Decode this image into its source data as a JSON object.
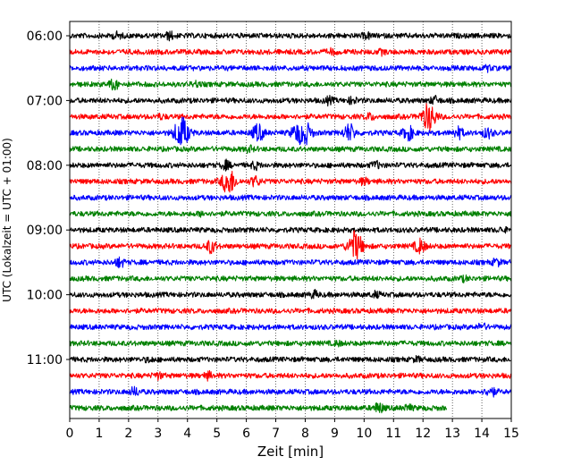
{
  "chart_data": {
    "type": "line",
    "title": "",
    "xlabel": "Zeit  [min]",
    "ylabel": "UTC (Lokalzeit = UTC + 01:00)",
    "xlim": [
      0,
      15
    ],
    "x_ticks": [
      0,
      1,
      2,
      3,
      4,
      5,
      6,
      7,
      8,
      9,
      10,
      11,
      12,
      13,
      14,
      15
    ],
    "x_tick_labels": [
      "0",
      "1",
      "2",
      "3",
      "4",
      "5",
      "6",
      "7",
      "8",
      "9",
      "10",
      "11",
      "12",
      "13",
      "14",
      "15"
    ],
    "y_tick_labels": [
      "06:00",
      "07:00",
      "08:00",
      "09:00",
      "10:00",
      "11:00"
    ],
    "vertical_grid": true,
    "grid_style": "dotted",
    "legend": "none",
    "traces_per_hour": 4,
    "minutes_per_trace": 15,
    "trace_colors": [
      "#000000",
      "#ff0000",
      "#0000ff",
      "#008000"
    ],
    "traces": [
      {
        "start": "06:00",
        "color": "#000000",
        "end_min": 15,
        "events": [
          {
            "t": 1.6,
            "amp": 0.18
          },
          {
            "t": 3.4,
            "amp": 0.22
          },
          {
            "t": 10.1,
            "amp": 0.15
          }
        ]
      },
      {
        "start": "06:15",
        "color": "#ff0000",
        "end_min": 15,
        "events": [
          {
            "t": 8.9,
            "amp": 0.14
          },
          {
            "t": 10.6,
            "amp": 0.12
          }
        ]
      },
      {
        "start": "06:30",
        "color": "#0000ff",
        "end_min": 15,
        "events": [
          {
            "t": 14.2,
            "amp": 0.14
          }
        ]
      },
      {
        "start": "06:45",
        "color": "#008000",
        "end_min": 15,
        "events": [
          {
            "t": 1.5,
            "amp": 0.3
          },
          {
            "t": 4.3,
            "amp": 0.14
          }
        ]
      },
      {
        "start": "07:00",
        "color": "#000000",
        "end_min": 15,
        "events": [
          {
            "t": 8.8,
            "amp": 0.2
          },
          {
            "t": 9.6,
            "amp": 0.18
          },
          {
            "t": 12.4,
            "amp": 0.22
          }
        ]
      },
      {
        "start": "07:15",
        "color": "#ff0000",
        "end_min": 15,
        "events": [
          {
            "t": 3.1,
            "amp": 0.12
          },
          {
            "t": 10.2,
            "amp": 0.18
          },
          {
            "t": 12.2,
            "amp": 0.9
          }
        ]
      },
      {
        "start": "07:30",
        "color": "#0000ff",
        "end_min": 15,
        "events": [
          {
            "t": 3.8,
            "amp": 1.0
          },
          {
            "t": 6.4,
            "amp": 0.55
          },
          {
            "t": 7.7,
            "amp": 0.5
          },
          {
            "t": 8.0,
            "amp": 0.7
          },
          {
            "t": 9.5,
            "amp": 0.55
          },
          {
            "t": 11.5,
            "amp": 0.45
          },
          {
            "t": 13.2,
            "amp": 0.35
          },
          {
            "t": 14.2,
            "amp": 0.3
          }
        ]
      },
      {
        "start": "07:45",
        "color": "#008000",
        "end_min": 15,
        "events": [
          {
            "t": 6.1,
            "amp": 0.15
          }
        ]
      },
      {
        "start": "08:00",
        "color": "#000000",
        "end_min": 15,
        "events": [
          {
            "t": 5.3,
            "amp": 0.25
          },
          {
            "t": 6.3,
            "amp": 0.2
          },
          {
            "t": 10.4,
            "amp": 0.2
          }
        ]
      },
      {
        "start": "08:15",
        "color": "#ff0000",
        "end_min": 15,
        "events": [
          {
            "t": 5.4,
            "amp": 0.85
          },
          {
            "t": 6.3,
            "amp": 0.3
          },
          {
            "t": 10.0,
            "amp": 0.18
          }
        ]
      },
      {
        "start": "08:30",
        "color": "#0000ff",
        "end_min": 15,
        "events": []
      },
      {
        "start": "08:45",
        "color": "#008000",
        "end_min": 15,
        "events": [
          {
            "t": 4.5,
            "amp": 0.12
          }
        ]
      },
      {
        "start": "09:00",
        "color": "#000000",
        "end_min": 15,
        "events": [
          {
            "t": 14.7,
            "amp": 0.12
          }
        ]
      },
      {
        "start": "09:15",
        "color": "#ff0000",
        "end_min": 15,
        "events": [
          {
            "t": 4.8,
            "amp": 0.4
          },
          {
            "t": 9.7,
            "amp": 0.95
          },
          {
            "t": 11.9,
            "amp": 0.45
          }
        ]
      },
      {
        "start": "09:30",
        "color": "#0000ff",
        "end_min": 15,
        "events": [
          {
            "t": 1.7,
            "amp": 0.28
          },
          {
            "t": 14.5,
            "amp": 0.2
          }
        ]
      },
      {
        "start": "09:45",
        "color": "#008000",
        "end_min": 15,
        "events": [
          {
            "t": 13.4,
            "amp": 0.12
          }
        ]
      },
      {
        "start": "10:00",
        "color": "#000000",
        "end_min": 15,
        "events": [
          {
            "t": 8.3,
            "amp": 0.2
          },
          {
            "t": 10.4,
            "amp": 0.15
          }
        ]
      },
      {
        "start": "10:15",
        "color": "#ff0000",
        "end_min": 15,
        "events": []
      },
      {
        "start": "10:30",
        "color": "#0000ff",
        "end_min": 15,
        "events": [
          {
            "t": 14.0,
            "amp": 0.18
          }
        ]
      },
      {
        "start": "10:45",
        "color": "#008000",
        "end_min": 15,
        "events": [
          {
            "t": 9.1,
            "amp": 0.12
          }
        ]
      },
      {
        "start": "11:00",
        "color": "#000000",
        "end_min": 15,
        "events": [
          {
            "t": 2.7,
            "amp": 0.12
          },
          {
            "t": 11.8,
            "amp": 0.12
          }
        ]
      },
      {
        "start": "11:15",
        "color": "#ff0000",
        "end_min": 15,
        "events": [
          {
            "t": 3.0,
            "amp": 0.18
          },
          {
            "t": 4.7,
            "amp": 0.2
          }
        ]
      },
      {
        "start": "11:30",
        "color": "#0000ff",
        "end_min": 15,
        "events": [
          {
            "t": 2.2,
            "amp": 0.25
          },
          {
            "t": 14.3,
            "amp": 0.3
          }
        ]
      },
      {
        "start": "11:45",
        "color": "#008000",
        "end_min": 12.8,
        "events": [
          {
            "t": 10.5,
            "amp": 0.3
          },
          {
            "t": 11.5,
            "amp": 0.15
          }
        ]
      }
    ]
  }
}
